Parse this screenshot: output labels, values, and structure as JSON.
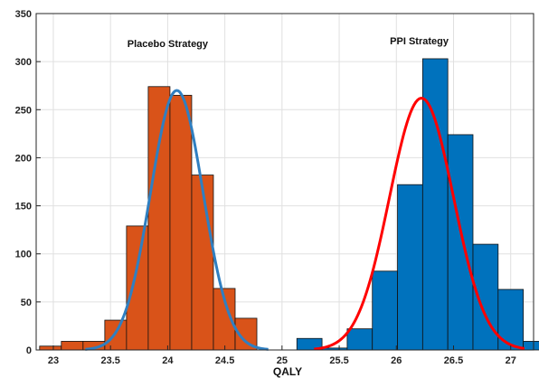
{
  "chart_data": {
    "type": "histogram",
    "title": "",
    "xlabel": "QALY",
    "ylabel": "",
    "xlim": [
      22.85,
      27.2
    ],
    "ylim": [
      0,
      350
    ],
    "grid": true,
    "x_ticks": [
      "23",
      "23.5",
      "24",
      "24.5",
      "25",
      "25.5",
      "26",
      "26.5",
      "27"
    ],
    "x_tick_values": [
      23,
      23.5,
      24,
      24.5,
      25,
      25.5,
      26,
      26.5,
      27
    ],
    "y_ticks": [
      "0",
      "50",
      "100",
      "150",
      "200",
      "250",
      "300",
      "350"
    ],
    "y_tick_values": [
      0,
      50,
      100,
      150,
      200,
      250,
      300,
      350
    ],
    "annotations": [
      {
        "text": "Placebo Strategy",
        "x": 24.0,
        "y": 315
      },
      {
        "text": "PPI Strategy",
        "x": 26.2,
        "y": 318
      }
    ],
    "series": [
      {
        "color": "#d95319",
        "bins": [
          {
            "x0": 22.88,
            "x1": 23.07,
            "value": 4
          },
          {
            "x0": 23.07,
            "x1": 23.26,
            "value": 9
          },
          {
            "x0": 23.26,
            "x1": 23.45,
            "value": 9
          },
          {
            "x0": 23.45,
            "x1": 23.64,
            "value": 31
          },
          {
            "x0": 23.64,
            "x1": 23.83,
            "value": 129
          },
          {
            "x0": 23.83,
            "x1": 24.02,
            "value": 274
          },
          {
            "x0": 24.02,
            "x1": 24.21,
            "value": 265
          },
          {
            "x0": 24.21,
            "x1": 24.4,
            "value": 182
          },
          {
            "x0": 24.4,
            "x1": 24.59,
            "value": 64
          },
          {
            "x0": 24.59,
            "x1": 24.78,
            "value": 33
          }
        ],
        "curve": {
          "color": "#2f7fc1",
          "mean": 24.08,
          "sd": 0.23,
          "peak": 270,
          "x_range": [
            23.28,
            24.88
          ]
        }
      },
      {
        "color": "#0072bd",
        "bins": [
          {
            "x0": 25.13,
            "x1": 25.35,
            "value": 12
          },
          {
            "x0": 25.35,
            "x1": 25.57,
            "value": 2
          },
          {
            "x0": 25.57,
            "x1": 25.79,
            "value": 22
          },
          {
            "x0": 25.79,
            "x1": 26.01,
            "value": 82
          },
          {
            "x0": 26.01,
            "x1": 26.23,
            "value": 172
          },
          {
            "x0": 26.23,
            "x1": 26.45,
            "value": 303
          },
          {
            "x0": 26.45,
            "x1": 26.67,
            "value": 224
          },
          {
            "x0": 26.67,
            "x1": 26.89,
            "value": 110
          },
          {
            "x0": 26.89,
            "x1": 27.11,
            "value": 63
          },
          {
            "x0": 27.11,
            "x1": 27.33,
            "value": 9
          }
        ],
        "curve": {
          "color": "#ff0000",
          "mean": 26.22,
          "sd": 0.28,
          "peak": 262,
          "x_range": [
            25.28,
            27.12
          ]
        }
      }
    ]
  }
}
